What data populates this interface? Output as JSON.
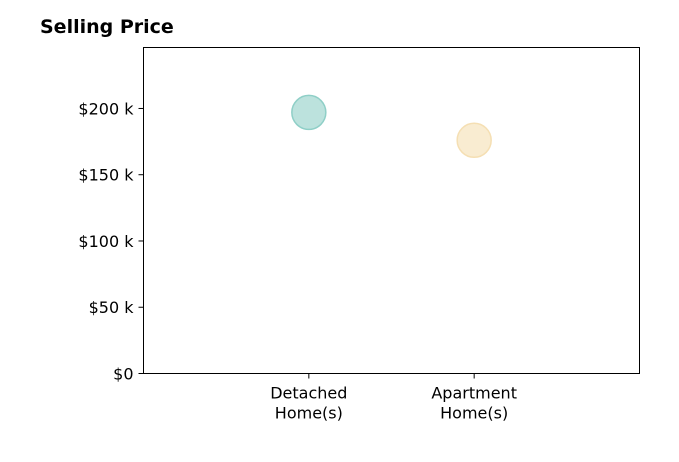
{
  "chart_data": {
    "type": "scatter",
    "title": "Selling Price",
    "categories": [
      "Detached\nHome(s)",
      "Apartment\nHome(s)"
    ],
    "series": [
      {
        "values": [
          197000,
          176000
        ],
        "colors": [
          "#8fcfc7",
          "#f5dfb3"
        ]
      }
    ],
    "y_ticks": [
      0,
      50000,
      100000,
      150000,
      200000
    ],
    "y_tick_labels": [
      "$0",
      "$50 k",
      "$100 k",
      "$150 k",
      "$200 k"
    ],
    "ylim": [
      0,
      246000
    ],
    "xlim": [
      0,
      3
    ],
    "grid": false,
    "legend": "none"
  }
}
